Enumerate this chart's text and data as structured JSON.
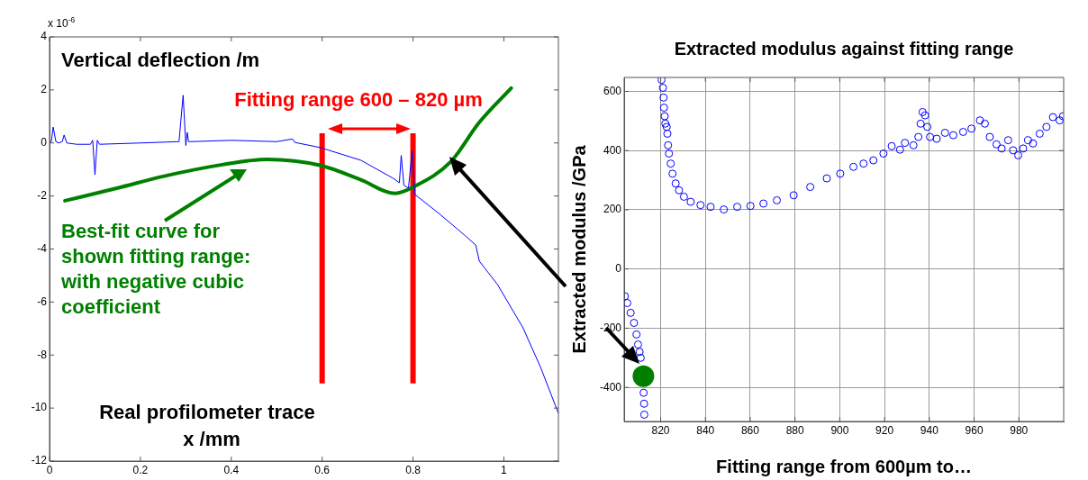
{
  "chart_data": [
    {
      "type": "line",
      "ylabel": "Vertical deflection /m",
      "xlabel": "x /mm",
      "annotations": [
        "x 10$^{-6}$",
        "Real profilometer trace",
        "Fitting range 600 – 820 µm"
      ],
      "xlim": [
        0,
        1.12
      ],
      "ylim": [
        -12,
        4
      ],
      "xticks": [
        0,
        0.2,
        0.4,
        0.6,
        0.8,
        1
      ],
      "yticks": [
        -12,
        -10,
        -8,
        -6,
        -4,
        -2,
        0,
        2,
        4
      ],
      "marker": "none",
      "legend": "left",
      "ref_lines": [
        {
          "axis": "x",
          "value": 0.6,
          "color": "#ff0000"
        },
        {
          "axis": "x",
          "value": 0.8,
          "color": "#ff0000"
        }
      ],
      "series": [
        {
          "color": "#0000ff",
          "x": [
            0,
            0.004,
            0.008,
            0.014,
            0.02,
            0.028,
            0.032,
            0.038,
            0.06,
            0.09,
            0.095,
            0.1,
            0.105,
            0.11,
            0.2,
            0.285,
            0.294,
            0.3,
            0.303,
            0.306,
            0.31,
            0.4,
            0.5,
            0.535,
            0.54,
            0.595,
            0.685,
            0.756,
            0.77,
            0.774,
            0.78,
            0.79,
            0.798,
            0.804,
            0.86,
            0.915,
            0.938,
            0.946,
            0.986,
            1.042,
            1.081,
            1.12
          ],
          "values": [
            0,
            0.05,
            0.6,
            0.05,
            0,
            0.05,
            0.3,
            0,
            -0.05,
            -0.05,
            0.1,
            -1.2,
            0.1,
            -0.05,
            0,
            0.05,
            1.8,
            -0.1,
            0.4,
            0.05,
            0.05,
            0.1,
            0.05,
            0.15,
            0.02,
            -0.17,
            -0.65,
            -1.33,
            -1.5,
            -0.47,
            -1.6,
            -1.7,
            -0.3,
            -1.94,
            -2.7,
            -3.5,
            -3.85,
            -4.46,
            -5.34,
            -6.97,
            -8.47,
            -10.2
          ]
        },
        {
          "color": "#008000",
          "name": "Best-fit curve for shown fitting range: with negative cubic coefficient",
          "x": [
            0.034,
            0.15,
            0.25,
            0.38,
            0.478,
            0.597,
            0.685,
            0.76,
            0.804,
            0.883,
            0.946,
            1.016
          ],
          "values": [
            -2.18,
            -1.7,
            -1.26,
            -0.82,
            -0.62,
            -0.85,
            -1.39,
            -1.9,
            -1.63,
            -0.71,
            0.78,
            2.07
          ]
        }
      ]
    },
    {
      "type": "scatter",
      "title": "Extracted modulus against fitting range",
      "xlabel": "Fitting range from 600µm to…",
      "ylabel": "Extracted modulus /GPa",
      "xlim": [
        803.7,
        1000
      ],
      "ylim": [
        -515,
        647
      ],
      "xticks": [
        820,
        840,
        860,
        880,
        900,
        920,
        940,
        960,
        980
      ],
      "yticks": [
        -400,
        -200,
        0,
        200,
        400,
        600
      ],
      "grid": true,
      "marker": "circle",
      "series": [
        {
          "color": "#0000ff",
          "x": [
            804.0,
            805.1,
            806.6,
            808.1,
            809.2,
            809.9,
            810.6,
            811.1,
            812.4,
            812.6,
            812.7,
            820.4,
            821.0,
            821.3,
            821.5,
            821.8,
            822.1,
            822.7,
            823.0,
            823.3,
            823.7,
            824.5,
            825.3,
            826.7,
            828.2,
            830.4,
            833.4,
            837.8,
            842.3,
            848.2,
            854.2,
            860.1,
            865.9,
            871.9,
            879.4,
            886.8,
            894.2,
            900.2,
            906.1,
            910.6,
            915.0,
            919.5,
            923.2,
            926.9,
            929.1,
            932.9,
            935.1,
            936.1,
            937.0,
            938.1,
            939.1,
            940.3,
            943.3,
            947.0,
            950.7,
            955.1,
            958.8,
            962.6,
            964.8,
            967.0,
            970.0,
            972.3,
            975.2,
            977.4,
            979.7,
            981.9,
            984.1,
            986.3,
            989.3,
            992.3,
            995.2,
            998.2,
            999.7
          ],
          "values": [
            -92,
            -115,
            -148,
            -182,
            -221,
            -255,
            -280,
            -300,
            -418,
            -455,
            -492,
            639,
            612,
            579,
            545,
            516,
            491,
            480,
            457,
            418,
            390,
            356,
            322,
            289,
            266,
            244,
            227,
            216,
            210,
            201,
            210,
            213,
            221,
            232,
            249,
            277,
            306,
            322,
            345,
            356,
            367,
            390,
            415,
            403,
            426,
            418,
            446,
            491,
            530,
            519,
            480,
            446,
            440,
            460,
            452,
            463,
            474,
            502,
            491,
            446,
            421,
            407,
            435,
            401,
            384,
            407,
            435,
            424,
            457,
            480,
            513,
            502,
            516
          ]
        },
        {
          "type": "bubble",
          "color": "#008000",
          "x": [
            812.3
          ],
          "values": [
            -362
          ],
          "sizes": [
            1
          ]
        }
      ]
    }
  ]
}
